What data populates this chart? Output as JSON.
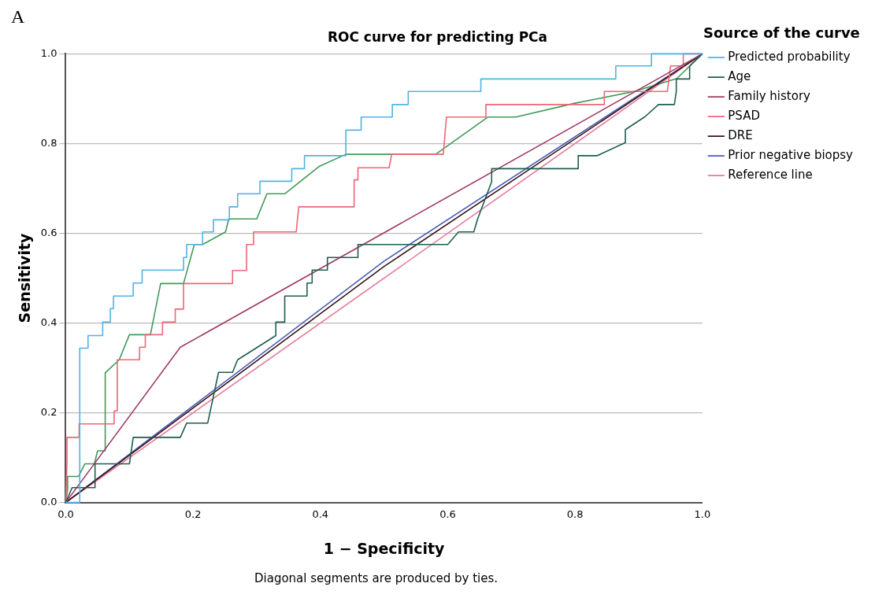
{
  "chart_data": {
    "type": "step",
    "title": "ROC curve for predicting PCa",
    "xlabel": "1 − Specificity",
    "ylabel": "Sensitivity",
    "legend_title": "Source of the curve",
    "legend": "right",
    "grid": "y",
    "marker": "none",
    "line_style": "solid",
    "annotations": [
      "A",
      "Diagonal segments are produced by ties."
    ],
    "xlim": [
      0,
      1
    ],
    "ylim": [
      0,
      1
    ],
    "xticks": [
      {
        "value": 0,
        "label": "0.0"
      },
      {
        "value": 0.2,
        "label": "0.2"
      },
      {
        "value": 0.4,
        "label": "0.4"
      },
      {
        "value": 0.6,
        "label": "0.6"
      },
      {
        "value": 0.8,
        "label": "0.8"
      },
      {
        "value": 1,
        "label": "1.0"
      }
    ],
    "yticks": [
      {
        "value": 0,
        "label": "0.0"
      },
      {
        "value": 0.2,
        "label": "0.2"
      },
      {
        "value": 0.4,
        "label": "0.4"
      },
      {
        "value": 0.6,
        "label": "0.6"
      },
      {
        "value": 0.8,
        "label": "0.8"
      },
      {
        "value": 1,
        "label": "1.0"
      }
    ],
    "series": [
      {
        "name": "Predicted probability",
        "color": "#4fb3e6",
        "x": [
          0,
          0.022,
          0.022,
          0.035,
          0.035,
          0.058,
          0.058,
          0.07,
          0.07,
          0.075,
          0.075,
          0.106,
          0.106,
          0.12,
          0.12,
          0.185,
          0.185,
          0.19,
          0.19,
          0.215,
          0.215,
          0.232,
          0.232,
          0.257,
          0.257,
          0.27,
          0.27,
          0.305,
          0.305,
          0.355,
          0.355,
          0.375,
          0.375,
          0.44,
          0.44,
          0.464,
          0.464,
          0.513,
          0.513,
          0.538,
          0.538,
          0.652,
          0.652,
          0.864,
          0.864,
          0.92,
          0.92,
          1
        ],
        "values": [
          0,
          0,
          0.344,
          0.344,
          0.372,
          0.372,
          0.402,
          0.402,
          0.432,
          0.432,
          0.46,
          0.46,
          0.489,
          0.489,
          0.518,
          0.518,
          0.546,
          0.546,
          0.575,
          0.575,
          0.603,
          0.603,
          0.63,
          0.63,
          0.659,
          0.659,
          0.688,
          0.688,
          0.716,
          0.716,
          0.744,
          0.744,
          0.773,
          0.773,
          0.83,
          0.83,
          0.859,
          0.859,
          0.887,
          0.887,
          0.916,
          0.916,
          0.944,
          0.944,
          0.973,
          0.973,
          1,
          1
        ]
      },
      {
        "name": "Age",
        "color": "#1f5e50",
        "x": [
          0,
          0.01,
          0.046,
          0.046,
          0.1,
          0.106,
          0.18,
          0.19,
          0.223,
          0.24,
          0.262,
          0.27,
          0.33,
          0.33,
          0.344,
          0.344,
          0.379,
          0.379,
          0.387,
          0.387,
          0.411,
          0.411,
          0.459,
          0.459,
          0.6,
          0.617,
          0.641,
          0.647,
          0.669,
          0.669,
          0.805,
          0.805,
          0.835,
          0.879,
          0.879,
          0.91,
          0.931,
          0.956,
          0.959,
          0.959,
          0.98,
          0.98,
          1
        ],
        "values": [
          0,
          0.033,
          0.033,
          0.086,
          0.086,
          0.145,
          0.145,
          0.177,
          0.177,
          0.29,
          0.29,
          0.318,
          0.372,
          0.402,
          0.402,
          0.46,
          0.46,
          0.489,
          0.489,
          0.518,
          0.518,
          0.546,
          0.546,
          0.575,
          0.575,
          0.603,
          0.603,
          0.632,
          0.715,
          0.744,
          0.744,
          0.773,
          0.773,
          0.802,
          0.831,
          0.86,
          0.887,
          0.887,
          0.916,
          0.944,
          0.944,
          0.973,
          1
        ]
      },
      {
        "name": "Family history",
        "color": "#a03c68",
        "x": [
          0,
          0.18,
          1
        ],
        "values": [
          0,
          0.346,
          1
        ]
      },
      {
        "name": "PSAD",
        "color": "#ee6677",
        "x": [
          0,
          0.002,
          0.002,
          0.021,
          0.021,
          0.076,
          0.076,
          0.081,
          0.081,
          0.116,
          0.116,
          0.125,
          0.125,
          0.152,
          0.152,
          0.172,
          0.172,
          0.185,
          0.185,
          0.262,
          0.262,
          0.284,
          0.284,
          0.295,
          0.295,
          0.362,
          0.366,
          0.453,
          0.453,
          0.459,
          0.459,
          0.508,
          0.512,
          0.593,
          0.598,
          0.66,
          0.66,
          0.846,
          0.846,
          0.945,
          0.95,
          0.97,
          0.97,
          1
        ],
        "values": [
          0,
          0.09,
          0.145,
          0.145,
          0.175,
          0.175,
          0.204,
          0.204,
          0.318,
          0.318,
          0.346,
          0.346,
          0.374,
          0.374,
          0.402,
          0.402,
          0.431,
          0.431,
          0.488,
          0.488,
          0.517,
          0.517,
          0.575,
          0.575,
          0.603,
          0.603,
          0.659,
          0.659,
          0.719,
          0.719,
          0.746,
          0.746,
          0.776,
          0.776,
          0.859,
          0.859,
          0.887,
          0.887,
          0.916,
          0.916,
          0.973,
          0.973,
          1,
          1
        ]
      },
      {
        "name": "DRE",
        "color": "#3a1414",
        "x": [
          0,
          0.5,
          1
        ],
        "values": [
          0,
          0.526,
          1
        ]
      },
      {
        "color": "#3f9a5a",
        "x": [
          0,
          0.003,
          0.003,
          0.02,
          0.03,
          0.045,
          0.05,
          0.062,
          0.062,
          0.084,
          0.1,
          0.133,
          0.149,
          0.185,
          0.202,
          0.215,
          0.251,
          0.256,
          0.3,
          0.316,
          0.344,
          0.398,
          0.44,
          0.581,
          0.663,
          0.707,
          0.8,
          0.893,
          0.96,
          1
        ],
        "values": [
          0,
          0.03,
          0.058,
          0.058,
          0.086,
          0.086,
          0.115,
          0.115,
          0.289,
          0.318,
          0.374,
          0.374,
          0.488,
          0.488,
          0.575,
          0.575,
          0.603,
          0.632,
          0.632,
          0.688,
          0.688,
          0.749,
          0.776,
          0.776,
          0.859,
          0.859,
          0.89,
          0.916,
          0.945,
          1
        ]
      },
      {
        "name": "Prior negative biopsy",
        "color": "#4a5cb8",
        "x": [
          0,
          0.5,
          1
        ],
        "values": [
          0,
          0.538,
          1
        ]
      },
      {
        "name": "Reference line",
        "color": "#e77a9a",
        "x": [
          0,
          1
        ],
        "values": [
          0,
          1
        ]
      }
    ]
  }
}
